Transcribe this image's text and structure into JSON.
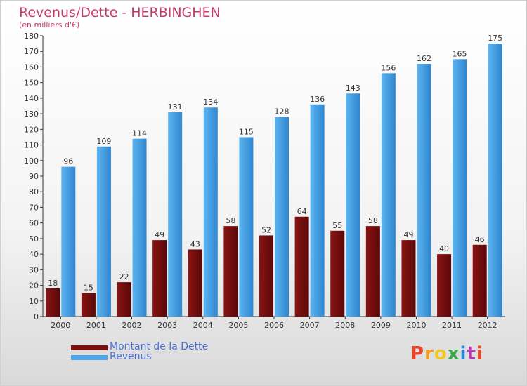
{
  "header": {
    "title": "Revenus/Dette - HERBINGHEN",
    "subtitle": "(en milliers d'€)"
  },
  "chart_data": {
    "type": "bar",
    "categories": [
      "2000",
      "2001",
      "2002",
      "2003",
      "2004",
      "2005",
      "2006",
      "2007",
      "2008",
      "2009",
      "2010",
      "2011",
      "2012"
    ],
    "series": [
      {
        "name": "Montant de la Dette",
        "color": "#7a1010",
        "values": [
          18,
          15,
          22,
          49,
          43,
          58,
          52,
          64,
          55,
          58,
          49,
          40,
          46
        ]
      },
      {
        "name": "Revenus",
        "color": "#4da6e8",
        "values": [
          96,
          109,
          114,
          131,
          134,
          115,
          128,
          136,
          143,
          156,
          162,
          165,
          175
        ]
      }
    ],
    "ylim": [
      0,
      180
    ],
    "ytick_step": 10,
    "grid": false,
    "legend_position": "bottom-left"
  },
  "legend": {
    "items": [
      {
        "label": "Montant de la Dette",
        "color": "#7a1010"
      },
      {
        "label": "Revenus",
        "color": "#4da6e8"
      }
    ]
  },
  "logo": {
    "text": "Proxiti",
    "letter_colors": [
      "#e8462a",
      "#f29a1f",
      "#f2c81f",
      "#3aa84a",
      "#2a86d8",
      "#b43ab0",
      "#e8462a"
    ]
  }
}
